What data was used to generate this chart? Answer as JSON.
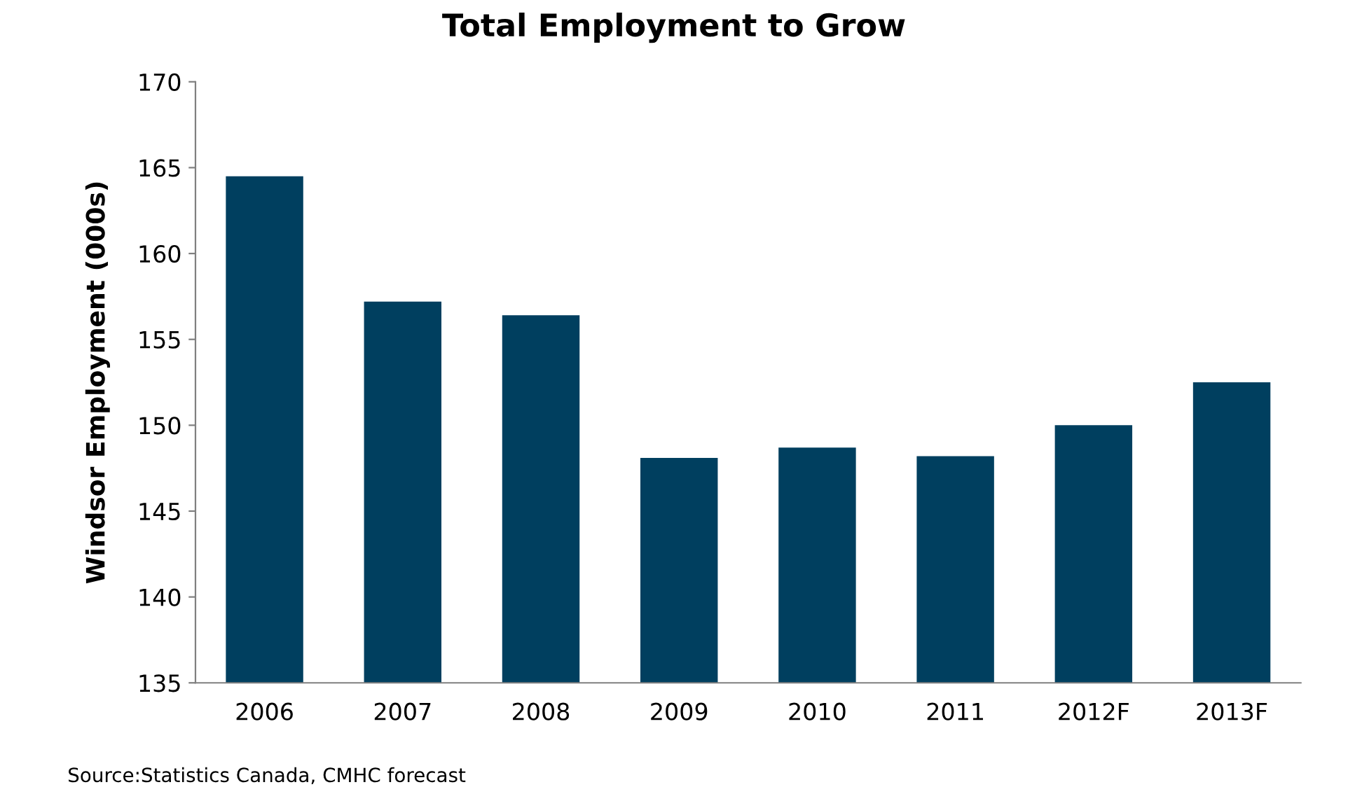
{
  "chart_data": {
    "type": "bar",
    "title": "Total Employment to Grow",
    "ylabel": "Windsor Employment (000s)",
    "categories": [
      "2006",
      "2007",
      "2008",
      "2009",
      "2010",
      "2011",
      "2012F",
      "2013F"
    ],
    "values": [
      164.5,
      157.2,
      156.4,
      148.1,
      148.7,
      148.2,
      150.0,
      152.5
    ],
    "color": "#003f5f",
    "ylim": [
      135,
      170
    ],
    "yticks": [
      135,
      140,
      145,
      150,
      155,
      160,
      165,
      170
    ],
    "grid": false,
    "annotations": [
      "Source:Statistics Canada, CMHC forecast"
    ]
  }
}
